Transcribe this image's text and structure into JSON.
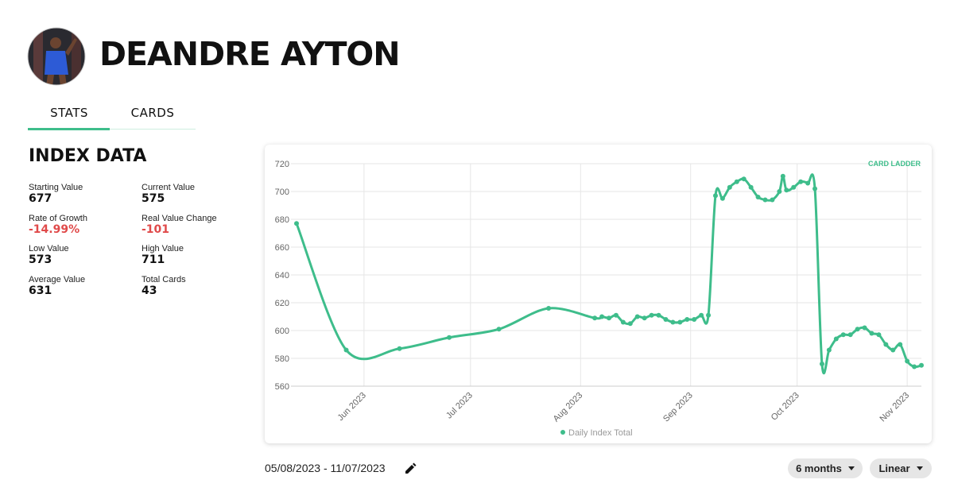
{
  "header": {
    "name": "DEANDRE AYTON"
  },
  "tabs": [
    "STATS",
    "CARDS"
  ],
  "index_data": {
    "title": "INDEX DATA",
    "stats": [
      {
        "label": "Starting Value",
        "value": "677"
      },
      {
        "label": "Current Value",
        "value": "575"
      },
      {
        "label": "Rate of Growth",
        "value": "-14.99%"
      },
      {
        "label": "Real Value Change",
        "value": "-101"
      },
      {
        "label": "Low Value",
        "value": "573"
      },
      {
        "label": "High Value",
        "value": "711"
      },
      {
        "label": "Average Value",
        "value": "631"
      },
      {
        "label": "Total Cards",
        "value": "43"
      }
    ]
  },
  "chart_data": {
    "type": "line",
    "brand": "CARD LADDER",
    "x": [
      "2023-05-13",
      "2023-05-27",
      "2023-06-11",
      "2023-06-25",
      "2023-07-09",
      "2023-07-23",
      "2023-08-05",
      "2023-08-07",
      "2023-08-09",
      "2023-08-11",
      "2023-08-13",
      "2023-08-15",
      "2023-08-17",
      "2023-08-19",
      "2023-08-21",
      "2023-08-23",
      "2023-08-25",
      "2023-08-27",
      "2023-08-29",
      "2023-08-31",
      "2023-09-02",
      "2023-09-04",
      "2023-09-06",
      "2023-09-08",
      "2023-09-10",
      "2023-09-12",
      "2023-09-14",
      "2023-09-16",
      "2023-09-18",
      "2023-09-20",
      "2023-09-22",
      "2023-09-24",
      "2023-09-26",
      "2023-09-27",
      "2023-09-28",
      "2023-09-30",
      "2023-10-02",
      "2023-10-04",
      "2023-10-06",
      "2023-10-08",
      "2023-10-10",
      "2023-10-12",
      "2023-10-14",
      "2023-10-16",
      "2023-10-18",
      "2023-10-20",
      "2023-10-22",
      "2023-10-24",
      "2023-10-26",
      "2023-10-28",
      "2023-10-30",
      "2023-11-01",
      "2023-11-03",
      "2023-11-05"
    ],
    "series": [
      {
        "name": "Daily Index Total",
        "color": "#3ebd8b",
        "values": [
          677,
          586,
          587,
          595,
          601,
          616,
          609,
          610,
          609,
          611,
          606,
          605,
          610,
          609,
          611,
          611,
          608,
          606,
          606,
          608,
          608,
          611,
          611,
          697,
          695,
          703,
          707,
          709,
          703,
          696,
          694,
          694,
          700,
          711,
          701,
          703,
          707,
          706,
          702,
          576,
          586,
          594,
          597,
          597,
          601,
          602,
          598,
          597,
          590,
          586,
          590,
          578,
          574,
          575
        ]
      }
    ],
    "xlim": [
      "2023-05-13",
      "2023-11-05"
    ],
    "xticks": [
      {
        "value": "2023-06-01",
        "label": "Jun 2023"
      },
      {
        "value": "2023-07-01",
        "label": "Jul 2023"
      },
      {
        "value": "2023-08-01",
        "label": "Aug 2023"
      },
      {
        "value": "2023-09-01",
        "label": "Sep 2023"
      },
      {
        "value": "2023-10-01",
        "label": "Oct 2023"
      },
      {
        "value": "2023-11-01",
        "label": "Nov 2023"
      }
    ],
    "ylim": [
      560,
      720
    ],
    "yticks": [
      560,
      580,
      600,
      620,
      640,
      660,
      680,
      700,
      720
    ],
    "grid": true,
    "legend": "bottom"
  },
  "controls": {
    "date_range": "05/08/2023 - 11/07/2023",
    "period": "6 months",
    "scale": "Linear"
  }
}
